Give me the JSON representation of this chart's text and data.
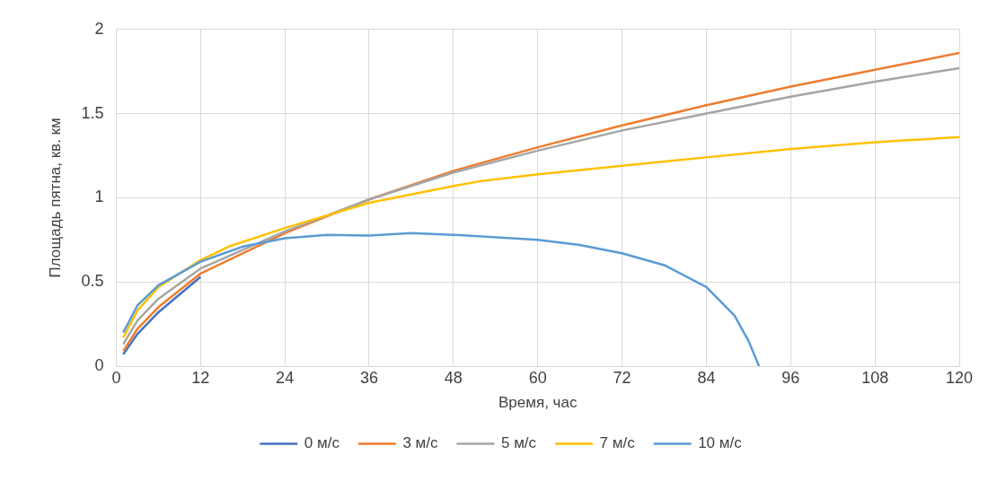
{
  "chart_data": {
    "type": "line",
    "xlabel": "Время, час",
    "ylabel": "Площадь пятна, кв. км",
    "xlim": [
      0,
      120
    ],
    "xticks": [
      0,
      12,
      24,
      36,
      48,
      60,
      72,
      84,
      96,
      108,
      120
    ],
    "ylim": [
      0,
      2
    ],
    "yticks": [
      0,
      0.5,
      1,
      1.5,
      2
    ],
    "grid": true,
    "legend": "bottom",
    "marker": "none",
    "line_style": "solid",
    "series": [
      {
        "name": "0 м/с",
        "color": "#4472c4",
        "x": [
          1,
          3,
          6,
          12
        ],
        "values": [
          0.07,
          0.19,
          0.32,
          0.53
        ]
      },
      {
        "name": "3 м/с",
        "color": "#ed7d31",
        "x": [
          1,
          3,
          6,
          12,
          24,
          36,
          48,
          60,
          72,
          84,
          96,
          108,
          120
        ],
        "values": [
          0.09,
          0.22,
          0.35,
          0.55,
          0.79,
          0.99,
          1.16,
          1.3,
          1.43,
          1.55,
          1.66,
          1.76,
          1.86
        ]
      },
      {
        "name": "5 м/с",
        "color": "#a5a5a5",
        "x": [
          1,
          3,
          6,
          12,
          24,
          36,
          48,
          60,
          72,
          84,
          96,
          108,
          120
        ],
        "values": [
          0.13,
          0.27,
          0.4,
          0.58,
          0.8,
          0.99,
          1.15,
          1.28,
          1.4,
          1.5,
          1.6,
          1.69,
          1.77
        ]
      },
      {
        "name": "7 м/с",
        "color": "#ffc000",
        "x": [
          1,
          3,
          6,
          12,
          16,
          24,
          36,
          48,
          52,
          60,
          72,
          84,
          96,
          108,
          120
        ],
        "values": [
          0.17,
          0.33,
          0.47,
          0.63,
          0.71,
          0.82,
          0.97,
          1.07,
          1.1,
          1.14,
          1.19,
          1.24,
          1.29,
          1.33,
          1.36
        ]
      },
      {
        "name": "10 м/с",
        "color": "#5b9bd5",
        "x": [
          1,
          3,
          6,
          12,
          18,
          24,
          30,
          36,
          42,
          48,
          60,
          66,
          72,
          78,
          84,
          88,
          90,
          91.5
        ],
        "values": [
          0.2,
          0.36,
          0.48,
          0.62,
          0.71,
          0.76,
          0.78,
          0.775,
          0.79,
          0.78,
          0.75,
          0.72,
          0.67,
          0.6,
          0.47,
          0.3,
          0.15,
          0
        ]
      }
    ]
  }
}
